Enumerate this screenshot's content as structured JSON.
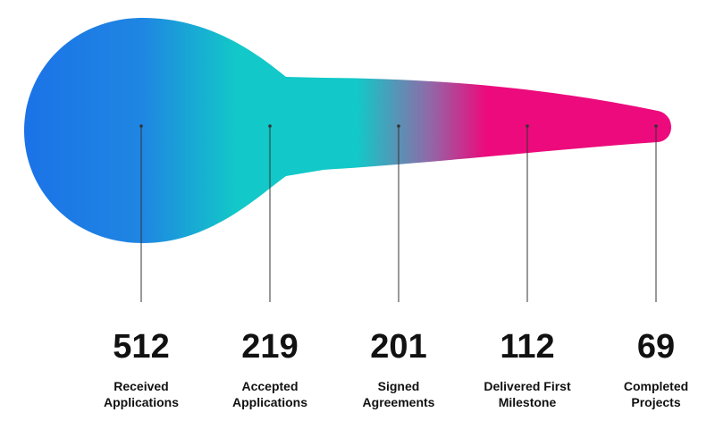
{
  "chart_data": {
    "type": "funnel",
    "title": "",
    "categories": [
      [
        "Received",
        "Applications"
      ],
      [
        "Accepted",
        "Applications"
      ],
      [
        "Signed",
        "Agreements"
      ],
      [
        "Delivered First",
        "Milestone"
      ],
      [
        "Completed",
        "Projects"
      ]
    ],
    "values": [
      "512",
      "219",
      "201",
      "112",
      "69"
    ],
    "colors": {
      "blue": "#1a6fe8",
      "blue_light": "#1f86e2",
      "teal": "#12c8c8",
      "purple": "#8f6aa8",
      "magenta": "#ec0a7c",
      "text": "#111111",
      "pointer_line": "#333333"
    }
  }
}
